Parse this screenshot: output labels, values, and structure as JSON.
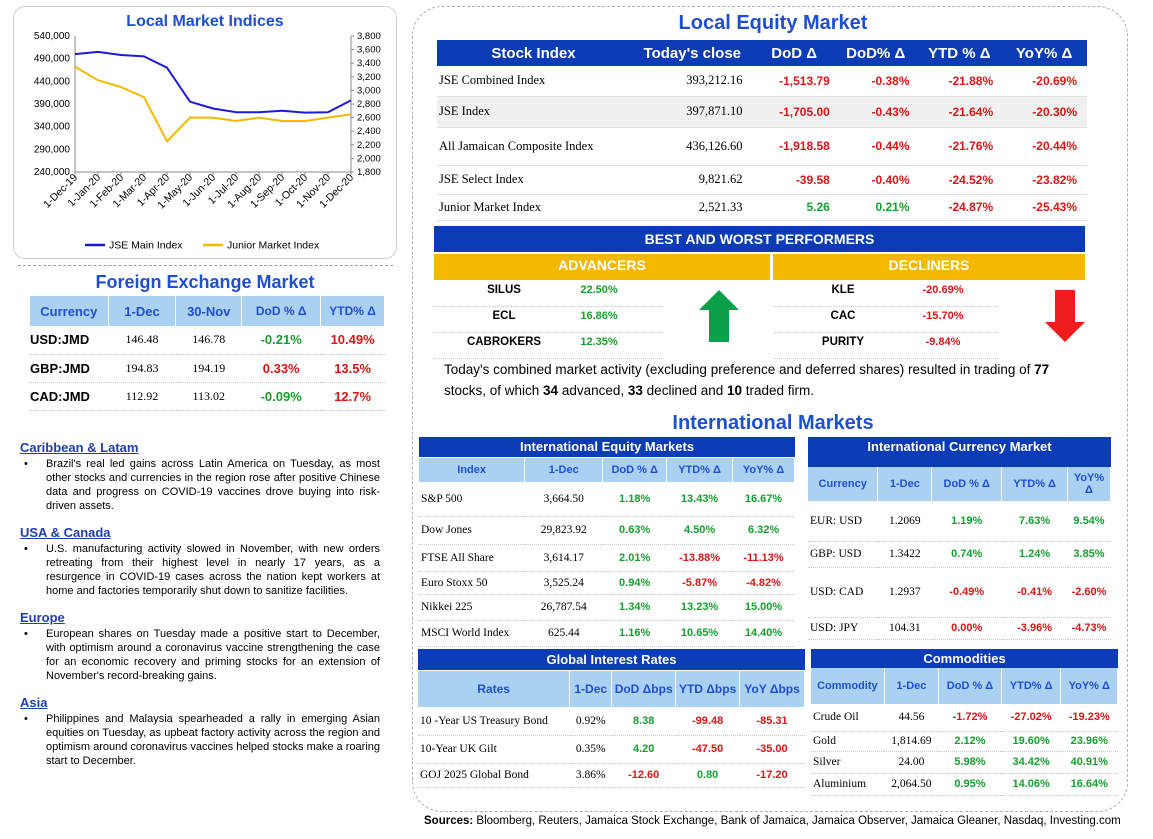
{
  "chart_data": {
    "type": "line",
    "title": "Local Market Indices",
    "x_ticks": [
      "1-Dec-19",
      "1-Jan-20",
      "1-Feb-20",
      "1-Mar-20",
      "1-Apr-20",
      "1-May-20",
      "1-Jun-20",
      "1-Jul-20",
      "1-Aug-20",
      "1-Sep-20",
      "1-Oct-20",
      "1-Nov-20",
      "1-Dec-20"
    ],
    "y_left_ticks": [
      "540,000",
      "490,000",
      "440,000",
      "390,000",
      "340,000",
      "290,000",
      "240,000"
    ],
    "y_left_range": [
      240000,
      540000
    ],
    "y_right_ticks": [
      "3,800",
      "3,600",
      "3,400",
      "3,200",
      "3,000",
      "2,800",
      "2,600",
      "2,400",
      "2,200",
      "2,000",
      "1,800"
    ],
    "y_right_range": [
      1800,
      3800
    ],
    "series": [
      {
        "name": "JSE Main Index",
        "axis": "left",
        "color": "#1c1cd6",
        "values": [
          500000,
          505000,
          498000,
          495000,
          470000,
          395000,
          380000,
          372000,
          372000,
          375000,
          371000,
          372000,
          398000
        ]
      },
      {
        "name": "Junior Market Index",
        "axis": "right",
        "color": "#f5b800",
        "values": [
          3350,
          3150,
          3050,
          2900,
          2250,
          2600,
          2600,
          2550,
          2600,
          2550,
          2550,
          2600,
          2650
        ]
      }
    ]
  },
  "fx": {
    "title": "Foreign Exchange Market",
    "headers": [
      "Currency",
      "1-Dec",
      "30-Nov",
      "DoD % Δ",
      "YTD% Δ"
    ],
    "rows": [
      {
        "c": "USD:JMD",
        "a": "146.48",
        "b": "146.78",
        "d": "-0.21%",
        "ds": "pos",
        "y": "10.49%",
        "ys": "neg"
      },
      {
        "c": "GBP:JMD",
        "a": "194.83",
        "b": "194.19",
        "d": "0.33%",
        "ds": "neg",
        "y": "13.5%",
        "ys": "neg"
      },
      {
        "c": "CAD:JMD",
        "a": "112.92",
        "b": "113.02",
        "d": "-0.09%",
        "ds": "pos",
        "y": "12.7%",
        "ys": "neg"
      }
    ]
  },
  "news": [
    {
      "head": "Caribbean & Latam",
      "text": "Brazil's real led gains across Latin America on Tuesday, as most other stocks and currencies in the region rose after positive Chinese data and progress on COVID-19 vaccines drove buying into risk-driven assets."
    },
    {
      "head": "USA & Canada",
      "text": "U.S. manufacturing activity slowed in November, with new orders retreating from their highest level in nearly 17 years, as a resurgence in COVID-19 cases across the nation kept workers at home and factories temporarily shut down to sanitize facilities."
    },
    {
      "head": "Europe",
      "text": "European shares on Tuesday made a positive start to December, with optimism around a coronavirus vaccine strengthening the case for an economic recovery and priming stocks for an extension of November's record-breaking gains."
    },
    {
      "head": "Asia",
      "text": "Philippines and Malaysia spearheaded a rally in emerging Asian equities on Tuesday, as upbeat factory activity across the region and optimism around coronavirus vaccines helped stocks make a roaring start to December."
    }
  ],
  "local_equity": {
    "title": "Local Equity Market",
    "headers": [
      "Stock Index",
      "Today's close",
      "DoD  Δ",
      "DoD% Δ",
      "YTD % Δ",
      "YoY% Δ"
    ],
    "rows": [
      {
        "n": "JSE Combined Index",
        "c": "393,212.16",
        "d": "-1,513.79",
        "ds": "neg",
        "dp": "-0.38%",
        "dps": "neg",
        "y": "-21.88%",
        "yo": "-20.69%"
      },
      {
        "n": "JSE Index",
        "c": "397,871.10",
        "d": "-1,705.00",
        "ds": "neg",
        "dp": "-0.43%",
        "dps": "neg",
        "y": "-21.64%",
        "yo": "-20.30%"
      },
      {
        "n": "All Jamaican Composite Index",
        "c": "436,126.60",
        "d": "-1,918.58",
        "ds": "neg",
        "dp": "-0.44%",
        "dps": "neg",
        "y": "-21.76%",
        "yo": "-20.44%"
      },
      {
        "n": "JSE Select Index",
        "c": "9,821.62",
        "d": "-39.58",
        "ds": "neg",
        "dp": "-0.40%",
        "dps": "neg",
        "y": "-24.52%",
        "yo": "-23.82%"
      },
      {
        "n": "Junior Market Index",
        "c": "2,521.33",
        "d": "5.26",
        "ds": "pos",
        "dp": "0.21%",
        "dps": "pos",
        "y": "-24.87%",
        "yo": "-25.43%"
      }
    ]
  },
  "performers": {
    "title": "BEST AND WORST PERFORMERS",
    "adv_label": "ADVANCERS",
    "dec_label": "DECLINERS",
    "advancers": [
      {
        "n": "SILUS",
        "v": "22.50%"
      },
      {
        "n": "ECL",
        "v": "16.86%"
      },
      {
        "n": "CABROKERS",
        "v": "12.35%"
      }
    ],
    "decliners": [
      {
        "n": "KLE",
        "v": "-20.69%"
      },
      {
        "n": "CAC",
        "v": "-15.70%"
      },
      {
        "n": "PURITY",
        "v": "-9.84%"
      }
    ],
    "up_color": "#0aa04a",
    "down_color": "#ee1c1c"
  },
  "summary": {
    "t1": "Today's combined market activity (excluding preference and deferred shares) resulted in trading of ",
    "n1": "77",
    "t2": " stocks, of which ",
    "n2": "34",
    "t3": " advanced, ",
    "n3": "33",
    "t4": " declined and ",
    "n4": "10",
    "t5": " traded firm."
  },
  "intl_title": "International Markets",
  "intl_equity": {
    "title": "International Equity Markets",
    "headers": [
      "Index",
      "1-Dec",
      "DoD % Δ",
      "YTD% Δ",
      "YoY% Δ"
    ],
    "rows": [
      {
        "n": "S&P 500",
        "v": "3,664.50",
        "d": "1.18%",
        "ds": "pos",
        "y": "13.43%",
        "ys": "pos",
        "o": "16.67%",
        "os": "pos"
      },
      {
        "n": "Dow Jones",
        "v": "29,823.92",
        "d": "0.63%",
        "ds": "pos",
        "y": "4.50%",
        "ys": "pos",
        "o": "6.32%",
        "os": "pos"
      },
      {
        "n": "FTSE All Share",
        "v": "3,614.17",
        "d": "2.01%",
        "ds": "pos",
        "y": "-13.88%",
        "ys": "neg",
        "o": "-11.13%",
        "os": "neg"
      },
      {
        "n": "Euro Stoxx 50",
        "v": "3,525.24",
        "d": "0.94%",
        "ds": "pos",
        "y": "-5.87%",
        "ys": "neg",
        "o": "-4.82%",
        "os": "neg"
      },
      {
        "n": "Nikkei 225",
        "v": "26,787.54",
        "d": "1.34%",
        "ds": "pos",
        "y": "13.23%",
        "ys": "pos",
        "o": "15.00%",
        "os": "pos"
      },
      {
        "n": "MSCI World Index",
        "v": "625.44",
        "d": "1.16%",
        "ds": "pos",
        "y": "10.65%",
        "ys": "pos",
        "o": "14.40%",
        "os": "pos"
      }
    ]
  },
  "intl_currency": {
    "title": "International Currency Market",
    "headers": [
      "Currency",
      "1-Dec",
      "DoD % Δ",
      "YTD% Δ",
      "YoY%"
    ],
    "headers_tail": "Δ",
    "rows": [
      {
        "n": "EUR: USD",
        "v": "1.2069",
        "d": "1.19%",
        "ds": "pos",
        "y": "7.63%",
        "ys": "pos",
        "o": "9.54%",
        "os": "pos"
      },
      {
        "n": "GBP: USD",
        "v": "1.3422",
        "d": "0.74%",
        "ds": "pos",
        "y": "1.24%",
        "ys": "pos",
        "o": "3.85%",
        "os": "pos"
      },
      {
        "n": "USD: CAD",
        "v": "1.2937",
        "d": "-0.49%",
        "ds": "neg",
        "y": "-0.41%",
        "ys": "neg",
        "o": "-2.60%",
        "os": "neg"
      },
      {
        "n": "USD: JPY",
        "v": "104.31",
        "d": "0.00%",
        "ds": "neg",
        "y": "-3.96%",
        "ys": "neg",
        "o": "-4.73%",
        "os": "neg"
      }
    ]
  },
  "rates": {
    "title": "Global Interest Rates",
    "headers": [
      "Rates",
      "1-Dec",
      "DoD Δbps",
      "YTD Δbps",
      "YoY Δbps"
    ],
    "rows": [
      {
        "n": "10 -Year US Treasury Bond",
        "v": "0.92%",
        "d": "8.38",
        "ds": "pos",
        "y": "-99.48",
        "ys": "neg",
        "o": "-85.31",
        "os": "neg"
      },
      {
        "n": "10-Year UK Gilt",
        "v": "0.35%",
        "d": "4.20",
        "ds": "pos",
        "y": "-47.50",
        "ys": "neg",
        "o": "-35.00",
        "os": "neg"
      },
      {
        "n": "GOJ 2025 Global Bond",
        "v": "3.86%",
        "d": "-12.60",
        "ds": "neg",
        "y": "0.80",
        "ys": "pos",
        "o": "-17.20",
        "os": "neg"
      }
    ]
  },
  "commodities": {
    "title": "Commodities",
    "headers": [
      "Commodity",
      "1-Dec",
      "DoD % Δ",
      "YTD% Δ",
      "YoY% Δ"
    ],
    "rows": [
      {
        "n": "Crude Oil",
        "v": "44.56",
        "d": "-1.72%",
        "ds": "neg",
        "y": "-27.02%",
        "ys": "neg",
        "o": "-19.23%",
        "os": "neg"
      },
      {
        "n": "Gold",
        "v": "1,814.69",
        "d": "2.12%",
        "ds": "pos",
        "y": "19.60%",
        "ys": "pos",
        "o": "23.96%",
        "os": "pos"
      },
      {
        "n": "Silver",
        "v": "24.00",
        "d": "5.98%",
        "ds": "pos",
        "y": "34.42%",
        "ys": "pos",
        "o": "40.91%",
        "os": "pos"
      },
      {
        "n": "Aluminium",
        "v": "2,064.50",
        "d": "0.95%",
        "ds": "pos",
        "y": "14.06%",
        "ys": "pos",
        "o": "16.64%",
        "os": "pos"
      }
    ]
  },
  "sources": {
    "label": "Sources:",
    "text": " Bloomberg, Reuters, Jamaica Stock Exchange, Bank of Jamaica, Jamaica Observer, Jamaica Gleaner, Nasdaq, Investing.com"
  }
}
